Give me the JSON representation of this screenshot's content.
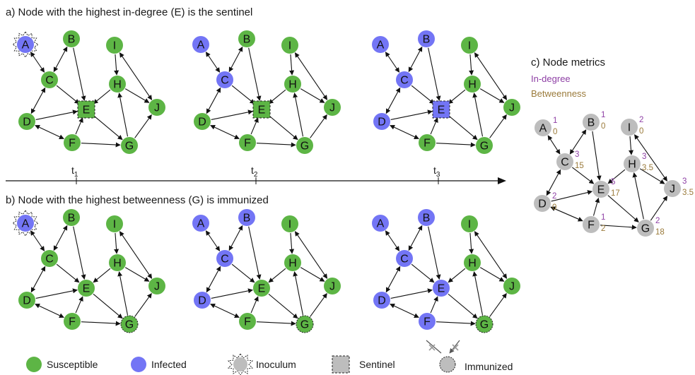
{
  "titles": {
    "a": "a) Node with the highest in-degree (E) is the sentinel",
    "b": "b) Node with the highest betweenness (G) is immunized",
    "c": "c) Node metrics"
  },
  "metrics_legend": {
    "in_degree": "In-degree",
    "betweenness": "Betweenness"
  },
  "timeline": {
    "ticks": [
      {
        "base": "t",
        "sub": "1"
      },
      {
        "base": "t",
        "sub": "2"
      },
      {
        "base": "t",
        "sub": "3"
      }
    ]
  },
  "legend": {
    "susceptible": "Susceptible",
    "infected": "Infected",
    "inoculum": "Inoculum",
    "sentinel": "Sentinel",
    "immunized": "Immunized"
  },
  "colors": {
    "susceptible": "#5db545",
    "infected": "#7375f5",
    "neutral": "#bdbdbd",
    "in_degree": "#8e3fa5",
    "betweenness": "#9a7a3a"
  },
  "nodes": [
    "A",
    "B",
    "C",
    "D",
    "E",
    "F",
    "G",
    "H",
    "I",
    "J"
  ],
  "edges": [
    {
      "from": "A",
      "to": "C",
      "dir": "both"
    },
    {
      "from": "B",
      "to": "C",
      "dir": "both"
    },
    {
      "from": "B",
      "to": "E",
      "dir": "forward"
    },
    {
      "from": "C",
      "to": "E",
      "dir": "forward"
    },
    {
      "from": "C",
      "to": "D",
      "dir": "both"
    },
    {
      "from": "D",
      "to": "E",
      "dir": "forward"
    },
    {
      "from": "D",
      "to": "F",
      "dir": "both"
    },
    {
      "from": "F",
      "to": "E",
      "dir": "forward"
    },
    {
      "from": "F",
      "to": "G",
      "dir": "forward"
    },
    {
      "from": "E",
      "to": "G",
      "dir": "forward"
    },
    {
      "from": "H",
      "to": "E",
      "dir": "forward"
    },
    {
      "from": "G",
      "to": "H",
      "dir": "forward"
    },
    {
      "from": "I",
      "to": "H",
      "dir": "forward"
    },
    {
      "from": "I",
      "to": "J",
      "dir": "both"
    },
    {
      "from": "H",
      "to": "J",
      "dir": "forward"
    },
    {
      "from": "G",
      "to": "J",
      "dir": "forward"
    }
  ],
  "panels": [
    {
      "id": "a1",
      "states": {
        "A": "infected",
        "B": "susceptible",
        "C": "susceptible",
        "D": "susceptible",
        "E": "susceptible",
        "F": "susceptible",
        "G": "susceptible",
        "H": "susceptible",
        "I": "susceptible",
        "J": "susceptible"
      },
      "inoculum": "A",
      "sentinel": "E",
      "immunized": null
    },
    {
      "id": "a2",
      "states": {
        "A": "infected",
        "B": "susceptible",
        "C": "infected",
        "D": "susceptible",
        "E": "susceptible",
        "F": "susceptible",
        "G": "susceptible",
        "H": "susceptible",
        "I": "susceptible",
        "J": "susceptible"
      },
      "inoculum": null,
      "sentinel": "E",
      "immunized": null
    },
    {
      "id": "a3",
      "states": {
        "A": "infected",
        "B": "infected",
        "C": "infected",
        "D": "infected",
        "E": "infected",
        "F": "susceptible",
        "G": "susceptible",
        "H": "susceptible",
        "I": "susceptible",
        "J": "susceptible"
      },
      "inoculum": null,
      "sentinel": "E",
      "immunized": null
    },
    {
      "id": "b1",
      "states": {
        "A": "infected",
        "B": "susceptible",
        "C": "susceptible",
        "D": "susceptible",
        "E": "susceptible",
        "F": "susceptible",
        "G": "susceptible",
        "H": "susceptible",
        "I": "susceptible",
        "J": "susceptible"
      },
      "inoculum": "A",
      "sentinel": null,
      "immunized": "G"
    },
    {
      "id": "b2",
      "states": {
        "A": "infected",
        "B": "infected",
        "C": "infected",
        "D": "infected",
        "E": "susceptible",
        "F": "susceptible",
        "G": "susceptible",
        "H": "susceptible",
        "I": "susceptible",
        "J": "susceptible"
      },
      "inoculum": null,
      "sentinel": null,
      "immunized": "G"
    },
    {
      "id": "b3",
      "states": {
        "A": "infected",
        "B": "infected",
        "C": "infected",
        "D": "infected",
        "E": "infected",
        "F": "infected",
        "G": "susceptible",
        "H": "susceptible",
        "I": "susceptible",
        "J": "susceptible"
      },
      "inoculum": null,
      "sentinel": null,
      "immunized": "G"
    }
  ],
  "metrics": {
    "A": {
      "in": "1",
      "bt": "0"
    },
    "B": {
      "in": "1",
      "bt": "0"
    },
    "C": {
      "in": "3",
      "bt": "15"
    },
    "D": {
      "in": "2",
      "bt": "0"
    },
    "E": {
      "in": "5",
      "bt": "17"
    },
    "F": {
      "in": "1",
      "bt": "2"
    },
    "G": {
      "in": "2",
      "bt": "18"
    },
    "H": {
      "in": "3",
      "bt": "3.5"
    },
    "I": {
      "in": "2",
      "bt": "0"
    },
    "J": {
      "in": "3",
      "bt": "3.5"
    }
  }
}
